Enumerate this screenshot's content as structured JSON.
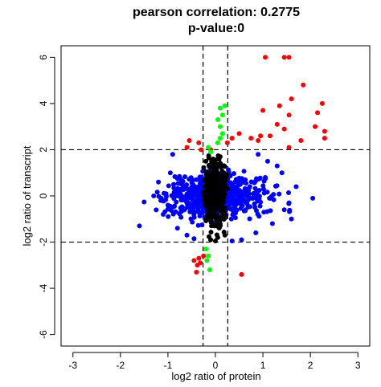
{
  "chart_data": {
    "type": "scatter",
    "title": "pearson correlation: 0.2775",
    "subtitle": "p-value:0",
    "xlabel": "log2 ratio of protein",
    "ylabel": "log2 ratio of transcript",
    "xlim": [
      -3.25,
      3.25
    ],
    "ylim": [
      -6.5,
      6.5
    ],
    "xticks": [
      -3,
      -2,
      -1,
      0,
      1,
      2,
      3
    ],
    "yticks": [
      -6,
      -4,
      -2,
      0,
      2,
      4,
      6
    ],
    "grid": false,
    "legend": "none",
    "thresholds": {
      "x": [
        -0.26,
        0.26
      ],
      "y": [
        -2,
        2
      ]
    },
    "series": [
      {
        "color": "#ff0000",
        "points": [
          [
            1.05,
            6.0
          ],
          [
            1.45,
            6.0
          ],
          [
            1.55,
            6.0
          ],
          [
            1.85,
            4.8
          ],
          [
            1.6,
            4.2
          ],
          [
            2.15,
            3.6
          ],
          [
            2.25,
            4.0
          ],
          [
            2.1,
            3.0
          ],
          [
            2.3,
            2.8
          ],
          [
            1.55,
            3.5
          ],
          [
            1.35,
            3.9
          ],
          [
            1.3,
            3.1
          ],
          [
            1.0,
            3.7
          ],
          [
            2.3,
            2.5
          ],
          [
            1.45,
            2.9
          ],
          [
            0.95,
            2.6
          ],
          [
            0.9,
            2.4
          ],
          [
            0.5,
            2.7
          ],
          [
            0.35,
            2.5
          ],
          [
            0.25,
            2.3
          ],
          [
            0.75,
            2.5
          ],
          [
            1.8,
            2.4
          ],
          [
            1.15,
            2.6
          ],
          [
            -0.55,
            2.4
          ],
          [
            -0.6,
            2.1
          ],
          [
            -0.35,
            2.3
          ],
          [
            -0.3,
            2.0
          ],
          [
            -0.1,
            2.0
          ],
          [
            0.55,
            -3.4
          ],
          [
            -0.45,
            -2.8
          ],
          [
            -0.35,
            -2.7
          ],
          [
            -0.25,
            -2.6
          ],
          [
            -0.38,
            -3.0
          ],
          [
            -0.4,
            -3.3
          ],
          [
            -0.32,
            -2.9
          ],
          [
            1.55,
            2.1
          ]
        ]
      },
      {
        "color": "#00ff00",
        "points": [
          [
            0.1,
            3.8
          ],
          [
            0.2,
            3.9
          ],
          [
            0.15,
            3.5
          ],
          [
            0.05,
            3.3
          ],
          [
            0.1,
            3.0
          ],
          [
            0.15,
            2.7
          ],
          [
            0.1,
            2.5
          ],
          [
            0.05,
            2.3
          ],
          [
            -0.15,
            2.1
          ],
          [
            -0.1,
            1.9
          ],
          [
            -0.2,
            -2.3
          ],
          [
            -0.15,
            -2.6
          ],
          [
            -0.12,
            -3.2
          ],
          [
            -0.18,
            -2.8
          ]
        ]
      },
      {
        "color": "#0000ff",
        "seed": 7,
        "count": 650,
        "center": [
          0.0,
          0.0
        ],
        "spread": [
          0.5,
          0.45
        ],
        "extra_points": [
          [
            -1.6,
            -1.3
          ],
          [
            -1.3,
            0.0
          ],
          [
            -1.1,
            -0.8
          ],
          [
            -1.0,
            -0.4
          ],
          [
            1.7,
            0.4
          ],
          [
            2.05,
            -0.1
          ],
          [
            1.45,
            -0.6
          ],
          [
            1.6,
            -1.0
          ],
          [
            1.3,
            1.3
          ],
          [
            1.4,
            1.0
          ],
          [
            -0.95,
            1.0
          ],
          [
            -0.9,
            1.8
          ],
          [
            0.9,
            1.8
          ],
          [
            1.1,
            1.5
          ],
          [
            -0.8,
            -1.4
          ],
          [
            0.85,
            -1.6
          ],
          [
            -0.6,
            -1.7
          ],
          [
            0.55,
            -1.9
          ],
          [
            -1.2,
            0.6
          ],
          [
            1.55,
            -0.3
          ],
          [
            -0.45,
            -1.85
          ],
          [
            0.35,
            -1.95
          ],
          [
            1.2,
            -1.2
          ],
          [
            -1.15,
            -0.2
          ],
          [
            1.05,
            0.8
          ]
        ]
      },
      {
        "color": "#000000",
        "seed": 13,
        "count": 380,
        "center": [
          0.0,
          0.1
        ],
        "spread": [
          0.12,
          0.7
        ],
        "xclip": [
          -0.27,
          0.27
        ],
        "yclip": [
          -1.9,
          1.75
        ],
        "extra_points": [
          [
            -0.1,
            -1.9
          ],
          [
            0.05,
            -1.8
          ],
          [
            0.1,
            1.7
          ],
          [
            -0.05,
            1.6
          ],
          [
            0.2,
            -1.7
          ],
          [
            -0.2,
            1.5
          ],
          [
            0.0,
            -1.95
          ]
        ]
      }
    ]
  }
}
